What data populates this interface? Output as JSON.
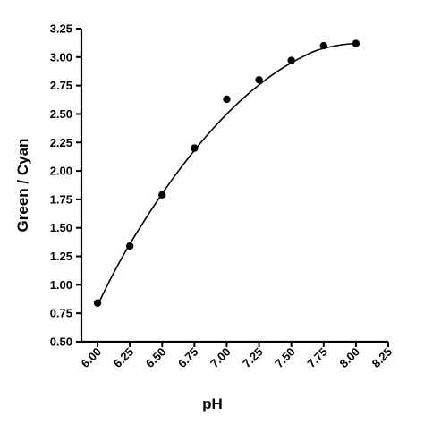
{
  "chart_data": {
    "type": "scatter",
    "xlabel": "pH",
    "ylabel": "Green / Cyan",
    "xlim": [
      5.875,
      8.25
    ],
    "ylim": [
      0.5,
      3.25
    ],
    "x_ticks": [
      "6.00",
      "6.25",
      "6.50",
      "6.75",
      "7.00",
      "7.25",
      "7.50",
      "7.75",
      "8.00",
      "8.25"
    ],
    "y_ticks": [
      "0.50",
      "0.75",
      "1.00",
      "1.25",
      "1.50",
      "1.75",
      "2.00",
      "2.25",
      "2.50",
      "2.75",
      "3.00",
      "3.25"
    ],
    "grid": false,
    "legend": "none",
    "series": [
      {
        "x": [
          6.0,
          6.25,
          6.5,
          6.75,
          7.0,
          7.25,
          7.5,
          7.75,
          8.0
        ],
        "y": [
          0.84,
          1.34,
          1.79,
          2.2,
          2.63,
          2.8,
          2.97,
          3.1,
          3.12
        ]
      }
    ],
    "fit_curve": {
      "x": [
        6.0,
        6.1,
        6.2,
        6.3,
        6.4,
        6.5,
        6.6,
        6.7,
        6.8,
        6.9,
        7.0,
        7.1,
        7.2,
        7.3,
        7.4,
        7.5,
        7.6,
        7.7,
        7.8,
        7.9,
        8.0
      ],
      "y": [
        0.82,
        1.05,
        1.26,
        1.45,
        1.63,
        1.8,
        1.96,
        2.11,
        2.25,
        2.38,
        2.5,
        2.61,
        2.71,
        2.8,
        2.88,
        2.95,
        3.01,
        3.06,
        3.09,
        3.11,
        3.12
      ]
    }
  }
}
